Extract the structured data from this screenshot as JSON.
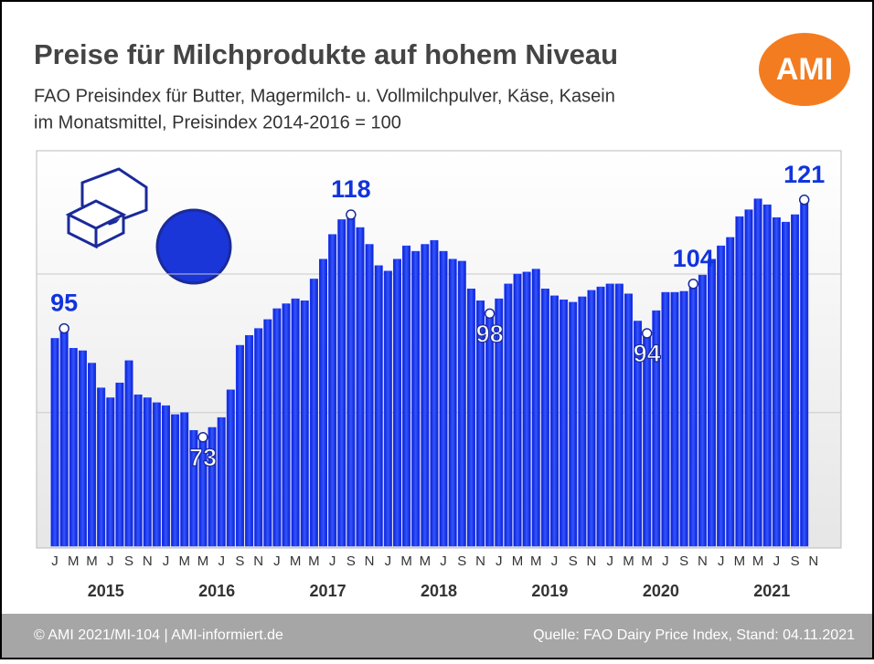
{
  "chart_data": {
    "type": "bar",
    "title": "Preise für Milchprodukte auf hohem Niveau",
    "subtitle": [
      "FAO Preisindex für Butter, Magermilch- u. Vollmilchpulver, Käse, Kasein",
      "im Monatsmittel, Preisindex 2014-2016 = 100"
    ],
    "logo": "AMI",
    "categories": [
      "J",
      null,
      "M",
      null,
      "M",
      null,
      "J",
      null,
      "S",
      null,
      "N",
      null,
      "J",
      null,
      "M",
      null,
      "M",
      null,
      "J",
      null,
      "S",
      null,
      "N",
      null,
      "J",
      null,
      "M",
      null,
      "M",
      null,
      "J",
      null,
      "S",
      null,
      "N",
      null,
      "J",
      null,
      "M",
      null,
      "M",
      null,
      "J",
      null,
      "S",
      null,
      "N",
      null,
      "J",
      null,
      "M",
      null,
      "M",
      null,
      "J",
      null,
      "S",
      null,
      "N",
      null,
      "J",
      null,
      "M",
      null,
      "M",
      null,
      "J",
      null,
      "S",
      null,
      "N",
      null,
      "J",
      null,
      "M",
      null,
      "M",
      null,
      "J",
      null,
      "S",
      null,
      "N",
      null
    ],
    "years": [
      "2015",
      "2016",
      "2017",
      "2018",
      "2019",
      "2020",
      "2021"
    ],
    "values": [
      93,
      95,
      91,
      90.5,
      88,
      83,
      81,
      84,
      88.5,
      81.6,
      81,
      80,
      79.4,
      77.6,
      78,
      74.4,
      73,
      75,
      77,
      82.6,
      91.6,
      93.6,
      95,
      96.8,
      99,
      100,
      101,
      100.6,
      105,
      109,
      114,
      117,
      118,
      115.4,
      112,
      107.7,
      106.6,
      109,
      111.7,
      110.6,
      112,
      112.8,
      110.6,
      109,
      108.6,
      103,
      100.6,
      98,
      101,
      104,
      106,
      106.4,
      107,
      103,
      101.6,
      100.8,
      100.3,
      101.4,
      102.7,
      103.4,
      104,
      104,
      102,
      96.5,
      94,
      98.6,
      102.3,
      102.3,
      102.5,
      104,
      105.8,
      109,
      111.7,
      113.4,
      117.6,
      119,
      121.2,
      120,
      117.4,
      116.5,
      118,
      121,
      null,
      null
    ],
    "value_labels": [
      null,
      "95",
      null,
      null,
      null,
      null,
      null,
      null,
      null,
      null,
      null,
      null,
      null,
      null,
      null,
      null,
      "73",
      null,
      null,
      null,
      null,
      null,
      null,
      null,
      null,
      null,
      null,
      null,
      null,
      null,
      null,
      null,
      "118",
      null,
      null,
      null,
      null,
      null,
      null,
      null,
      null,
      null,
      null,
      null,
      null,
      null,
      null,
      "98",
      null,
      null,
      null,
      null,
      null,
      null,
      null,
      null,
      null,
      null,
      null,
      null,
      null,
      null,
      null,
      null,
      "94",
      null,
      null,
      null,
      null,
      "104",
      null,
      null,
      null,
      null,
      null,
      null,
      null,
      null,
      null,
      null,
      null,
      "121",
      null,
      null
    ],
    "color": "#1f3cff",
    "ylim": [
      51,
      130
    ],
    "gridlines": [
      78,
      106
    ],
    "footer_left": "© AMI 2021/MI-104 | AMI-informiert.de",
    "footer_right": "Quelle: FAO Dairy Price Index, Stand: 04.11.2021"
  }
}
